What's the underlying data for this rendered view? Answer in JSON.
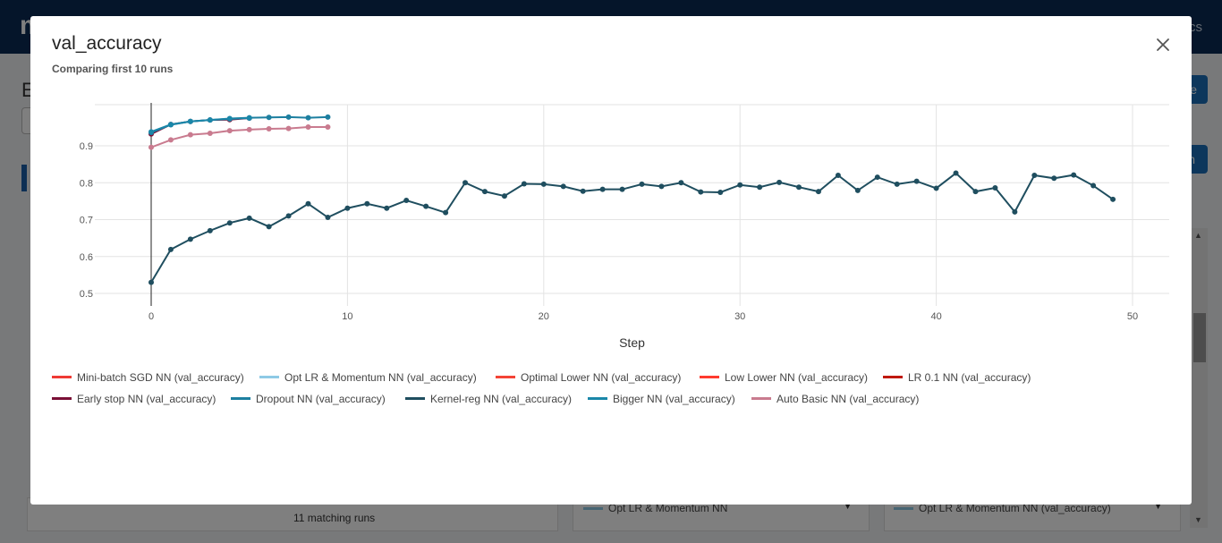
{
  "background": {
    "brand": "m",
    "topbar_right": "cs",
    "heading": "E",
    "button_primary": "e",
    "button_secondary": "n",
    "matching_runs": "11 matching runs",
    "select_1": "Opt LR & Momentum NN",
    "select_2": "Opt LR & Momentum NN (val_accuracy)"
  },
  "modal": {
    "title": "val_accuracy",
    "subtitle": "Comparing first 10 runs",
    "close_icon": "close-icon"
  },
  "chart_data": {
    "type": "line",
    "title": "",
    "xlabel": "Step",
    "ylabel": "",
    "xlim": [
      -3,
      52
    ],
    "ylim": [
      0.5,
      1.0
    ],
    "xticks": [
      0,
      10,
      20,
      30,
      40,
      50
    ],
    "yticks": [
      0.5,
      0.6,
      0.7,
      0.8,
      0.9
    ],
    "grid": true,
    "legend_position": "bottom",
    "series": [
      {
        "name": "Mini-batch SGD NN (val_accuracy)",
        "color": "#ef3a34",
        "x": [],
        "y": []
      },
      {
        "name": "Opt LR & Momentum NN (val_accuracy)",
        "color": "#8ecae6",
        "x": [],
        "y": []
      },
      {
        "name": "Optimal Lower NN (val_accuracy)",
        "color": "#f44336",
        "x": [],
        "y": []
      },
      {
        "name": "Low Lower NN (val_accuracy)",
        "color": "#ff3b2f",
        "x": [],
        "y": []
      },
      {
        "name": "LR 0.1 NN (val_accuracy)",
        "color": "#c0190f",
        "x": [],
        "y": []
      },
      {
        "name": "Early stop NN (val_accuracy)",
        "color": "#7a1036",
        "x": [
          0,
          1,
          2,
          3,
          4,
          5
        ],
        "y": [
          0.932,
          0.958,
          0.966,
          0.97,
          0.971,
          0.975
        ]
      },
      {
        "name": "Dropout NN (val_accuracy)",
        "color": "#1d7fa0",
        "x": [
          0,
          1,
          2,
          3,
          4,
          5,
          6,
          7,
          8,
          9
        ],
        "y": [
          0.936,
          0.957,
          0.966,
          0.97,
          0.974,
          0.976,
          0.977,
          0.978,
          0.976,
          0.978
        ]
      },
      {
        "name": "Kernel-reg NN (val_accuracy)",
        "color": "#1f4e5f",
        "x": [
          0,
          1,
          2,
          3,
          4,
          5,
          6,
          7,
          8,
          9,
          10,
          11,
          12,
          13,
          14,
          15,
          16,
          17,
          18,
          19,
          20,
          21,
          22,
          23,
          24,
          25,
          26,
          27,
          28,
          29,
          30,
          31,
          32,
          33,
          34,
          35,
          36,
          37,
          38,
          39,
          40,
          41,
          42,
          43,
          44,
          45,
          46,
          47,
          48,
          49
        ],
        "y": [
          0.53,
          0.619,
          0.647,
          0.67,
          0.691,
          0.704,
          0.681,
          0.71,
          0.743,
          0.706,
          0.731,
          0.743,
          0.731,
          0.752,
          0.736,
          0.719,
          0.8,
          0.776,
          0.764,
          0.797,
          0.796,
          0.79,
          0.777,
          0.782,
          0.782,
          0.796,
          0.79,
          0.8,
          0.775,
          0.774,
          0.794,
          0.788,
          0.801,
          0.788,
          0.776,
          0.82,
          0.779,
          0.815,
          0.796,
          0.804,
          0.785,
          0.826,
          0.776,
          0.786,
          0.721,
          0.82,
          0.812,
          0.821,
          0.792,
          0.755
        ]
      },
      {
        "name": "Bigger NN (val_accuracy)",
        "color": "#1a87a9",
        "x": [
          0,
          1,
          2,
          3,
          4,
          5
        ],
        "y": [
          0.938,
          0.958,
          0.966,
          0.97,
          0.973,
          0.975
        ]
      },
      {
        "name": "Auto Basic NN (val_accuracy)",
        "color": "#c97b8f",
        "x": [
          0,
          1,
          2,
          3,
          4,
          5,
          6,
          7,
          8,
          9
        ],
        "y": [
          0.896,
          0.916,
          0.93,
          0.934,
          0.941,
          0.944,
          0.946,
          0.947,
          0.951,
          0.951
        ]
      }
    ]
  }
}
